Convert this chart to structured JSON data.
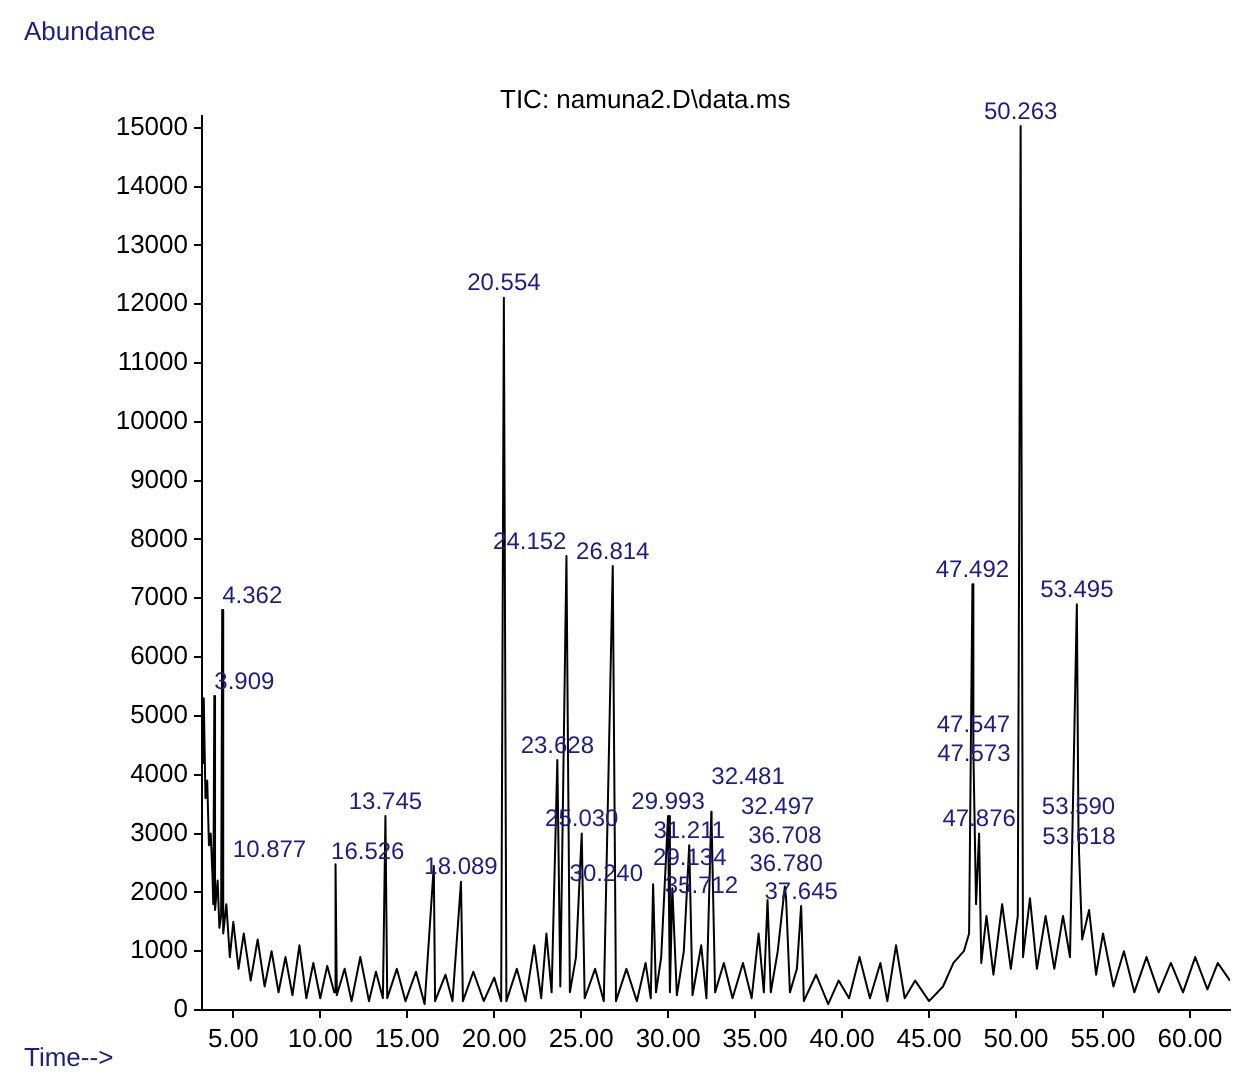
{
  "chart_data": {
    "type": "line",
    "title": "TIC: namuna2.D\\data.ms",
    "xlabel": "Time-->",
    "ylabel": "Abundance",
    "x": [
      3.2,
      3.3,
      3.4,
      3.5,
      3.6,
      3.7,
      3.8,
      3.85,
      3.909,
      3.95,
      4.1,
      4.2,
      4.3,
      4.362,
      4.42,
      4.6,
      4.8,
      5.0,
      5.3,
      5.6,
      6.0,
      6.4,
      6.8,
      7.2,
      7.6,
      8.0,
      8.4,
      8.8,
      9.2,
      9.6,
      10.0,
      10.4,
      10.8,
      10.877,
      10.95,
      11.4,
      11.8,
      12.3,
      12.8,
      13.2,
      13.6,
      13.745,
      13.85,
      14.4,
      14.9,
      15.5,
      16.0,
      16.526,
      16.6,
      17.2,
      17.6,
      18.089,
      18.2,
      18.8,
      19.4,
      20.0,
      20.4,
      20.554,
      20.7,
      21.3,
      21.8,
      22.3,
      22.7,
      23.0,
      23.3,
      23.628,
      23.8,
      24.152,
      24.35,
      24.7,
      25.03,
      25.2,
      25.8,
      26.3,
      26.814,
      27.0,
      27.6,
      28.2,
      28.7,
      29.0,
      29.134,
      29.3,
      29.6,
      29.993,
      30.1,
      30.24,
      30.5,
      30.9,
      31.211,
      31.4,
      31.9,
      32.2,
      32.481,
      32.497,
      32.7,
      33.2,
      33.7,
      34.3,
      34.8,
      35.2,
      35.5,
      35.712,
      35.9,
      36.3,
      36.708,
      36.78,
      37.0,
      37.4,
      37.645,
      37.8,
      38.5,
      39.2,
      39.8,
      40.4,
      41.0,
      41.6,
      42.2,
      42.6,
      43.1,
      43.6,
      44.2,
      45.0,
      45.8,
      46.4,
      47.0,
      47.3,
      47.492,
      47.547,
      47.7,
      47.876,
      48.0,
      48.3,
      48.7,
      49.2,
      49.7,
      50.1,
      50.263,
      50.4,
      50.8,
      51.2,
      51.7,
      52.2,
      52.7,
      53.1,
      53.495,
      53.59,
      53.618,
      53.8,
      54.2,
      54.6,
      55.0,
      55.6,
      56.2,
      56.8,
      57.5,
      58.2,
      58.9,
      59.6,
      60.3,
      61.0,
      61.6,
      62.3
    ],
    "series": [
      {
        "color": "#000000",
        "values": [
          4200,
          5300,
          3600,
          3900,
          2800,
          3000,
          2300,
          1800,
          5340,
          1700,
          2200,
          1400,
          1600,
          6800,
          1300,
          1800,
          900,
          1500,
          700,
          1300,
          500,
          1200,
          400,
          1000,
          300,
          900,
          250,
          1100,
          200,
          800,
          200,
          750,
          300,
          2480,
          250,
          700,
          150,
          900,
          150,
          650,
          200,
          3300,
          200,
          700,
          150,
          650,
          100,
          2450,
          150,
          600,
          150,
          2180,
          150,
          650,
          150,
          550,
          150,
          12110,
          150,
          700,
          150,
          1100,
          200,
          1300,
          300,
          4250,
          400,
          7720,
          300,
          900,
          3000,
          200,
          700,
          150,
          7550,
          150,
          700,
          150,
          800,
          200,
          2140,
          300,
          900,
          3300,
          300,
          2070,
          250,
          1000,
          2800,
          250,
          1100,
          200,
          3370,
          3200,
          300,
          800,
          200,
          800,
          200,
          1300,
          300,
          1870,
          300,
          1000,
          2100,
          1900,
          300,
          700,
          1770,
          150,
          600,
          100,
          500,
          200,
          900,
          200,
          800,
          150,
          1100,
          200,
          500,
          150,
          400,
          800,
          1000,
          1300,
          7240,
          4400,
          1800,
          3000,
          800,
          1600,
          600,
          1800,
          700,
          1600,
          15030,
          900,
          1900,
          700,
          1600,
          700,
          1600,
          900,
          6900,
          3000,
          2700,
          1200,
          1700,
          600,
          1300,
          400,
          1000,
          300,
          900,
          300,
          800,
          300,
          900,
          350,
          800,
          500
        ]
      }
    ],
    "xlim": [
      3.2,
      62.3
    ],
    "ylim": [
      0,
      15200
    ],
    "xticks": [
      {
        "value": 5,
        "label": "5.00"
      },
      {
        "value": 10,
        "label": "10.00"
      },
      {
        "value": 15,
        "label": "15.00"
      },
      {
        "value": 20,
        "label": "20.00"
      },
      {
        "value": 25,
        "label": "25.00"
      },
      {
        "value": 30,
        "label": "30.00"
      },
      {
        "value": 35,
        "label": "35.00"
      },
      {
        "value": 40,
        "label": "40.00"
      },
      {
        "value": 45,
        "label": "45.00"
      },
      {
        "value": 50,
        "label": "50.00"
      },
      {
        "value": 55,
        "label": "55.00"
      },
      {
        "value": 60,
        "label": "60.00"
      }
    ],
    "yticks": [
      0,
      1000,
      2000,
      3000,
      4000,
      5000,
      6000,
      7000,
      8000,
      9000,
      10000,
      11000,
      12000,
      13000,
      14000,
      15000
    ],
    "marker": "none",
    "line_style": "solid",
    "grid": false,
    "legend": false,
    "annotations": [
      {
        "text": "3.909",
        "x": 3.909,
        "y": 5340
      },
      {
        "text": "4.362",
        "x": 4.362,
        "y": 6800
      },
      {
        "text": "10.877",
        "x": 10.877,
        "y": 2480
      },
      {
        "text": "13.745",
        "x": 13.745,
        "y": 3300
      },
      {
        "text": "16.526",
        "x": 16.526,
        "y": 2450
      },
      {
        "text": "18.089",
        "x": 18.089,
        "y": 2180
      },
      {
        "text": "20.554",
        "x": 20.554,
        "y": 12110
      },
      {
        "text": "23.628",
        "x": 23.628,
        "y": 4250
      },
      {
        "text": "24.152",
        "x": 24.152,
        "y": 7720
      },
      {
        "text": "25.030",
        "x": 25.03,
        "y": 3000
      },
      {
        "text": "26.814",
        "x": 26.814,
        "y": 7550
      },
      {
        "text": "29.134",
        "x": 29.134,
        "y": 2140
      },
      {
        "text": "29.993",
        "x": 29.993,
        "y": 3300
      },
      {
        "text": "30.240",
        "x": 30.24,
        "y": 2070
      },
      {
        "text": "31.211",
        "x": 31.211,
        "y": 2800
      },
      {
        "text": "32.481",
        "x": 32.481,
        "y": 3370
      },
      {
        "text": "32.497",
        "x": 32.497,
        "y": 3200
      },
      {
        "text": "35.712",
        "x": 35.712,
        "y": 1870
      },
      {
        "text": "36.708",
        "x": 36.708,
        "y": 2100
      },
      {
        "text": "36.780",
        "x": 36.78,
        "y": 1900
      },
      {
        "text": "37.645",
        "x": 37.645,
        "y": 1770
      },
      {
        "text": "47.492",
        "x": 47.492,
        "y": 7240
      },
      {
        "text": "47.547",
        "x": 47.547,
        "y": 4400
      },
      {
        "text": "47.573",
        "x": 47.573,
        "y": 4100
      },
      {
        "text": "47.876",
        "x": 47.876,
        "y": 3000
      },
      {
        "text": "50.263",
        "x": 50.263,
        "y": 15030
      },
      {
        "text": "53.495",
        "x": 53.495,
        "y": 6900
      },
      {
        "text": "53.590",
        "x": 53.59,
        "y": 3000
      },
      {
        "text": "53.618",
        "x": 53.618,
        "y": 2700
      }
    ]
  }
}
